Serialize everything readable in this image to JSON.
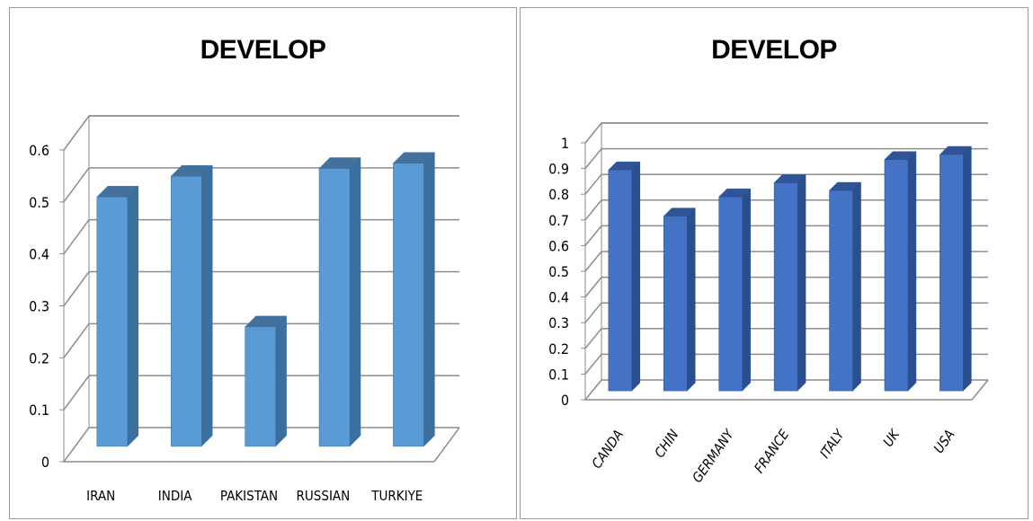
{
  "chart_data": [
    {
      "type": "bar",
      "title": "DEVELOP",
      "categories": [
        "IRAN",
        "INDIA",
        "PAKISTAN",
        "RUSSIAN",
        "TURKIYE"
      ],
      "values": [
        0.48,
        0.52,
        0.23,
        0.535,
        0.545
      ],
      "yticks": [
        "0",
        "0.1",
        "0.2",
        "0.3",
        "0.4",
        "0.5",
        "0.6"
      ],
      "ylim": [
        0,
        0.6
      ],
      "grid": true,
      "three_d": true,
      "x_label_rotation": 0,
      "colors": {
        "front": "#5b9bd5",
        "side": "#3a6f9e",
        "top": "#41719c"
      }
    },
    {
      "type": "bar",
      "title": "DEVELOP",
      "categories": [
        "CANDA",
        "CHIN",
        "GERMANY",
        "FRANCE",
        "ITALY",
        "UK",
        "USA"
      ],
      "values": [
        0.86,
        0.68,
        0.755,
        0.81,
        0.78,
        0.9,
        0.92
      ],
      "yticks": [
        "0",
        "0.1",
        "0.2",
        "0.3",
        "0.4",
        "0.5",
        "0.6",
        "0.7",
        "0.8",
        "0.9",
        "1"
      ],
      "ylim": [
        0,
        1
      ],
      "grid": true,
      "three_d": true,
      "x_label_rotation": -55,
      "colors": {
        "front": "#4472c4",
        "side": "#2a4f8f",
        "top": "#2f5597"
      }
    }
  ]
}
